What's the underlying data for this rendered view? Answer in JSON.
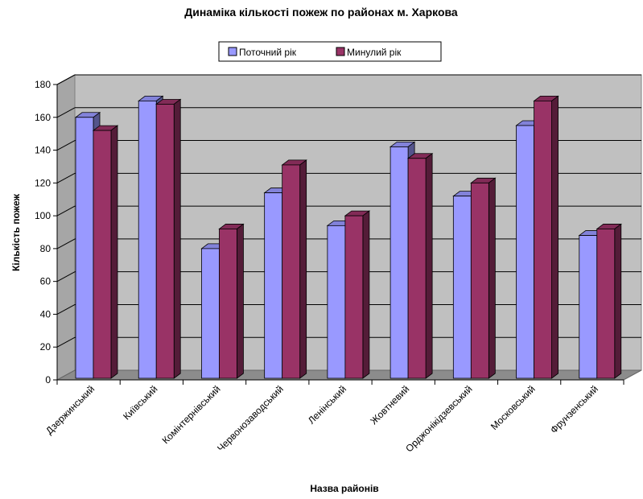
{
  "chart_data": {
    "type": "bar",
    "title": "Динаміка кількості пожеж по районах м. Харкова",
    "xlabel": "Назва районів",
    "ylabel": "Кількість пожеж",
    "ylim": [
      0,
      180
    ],
    "yticks": [
      0,
      20,
      40,
      60,
      80,
      100,
      120,
      140,
      160,
      180
    ],
    "categories": [
      "Дзержинський",
      "Київський",
      "Комінтернівський",
      "Червонозаводський",
      "Ленінський",
      "Жовтневий",
      "Орджонікідзевський",
      "Московський",
      "Фрунзенський"
    ],
    "series": [
      {
        "name": "Поточний рік",
        "color": "#9999ff",
        "values": [
          160,
          170,
          80,
          114,
          94,
          142,
          112,
          155,
          88
        ]
      },
      {
        "name": "Минулий рік",
        "color": "#993366",
        "values": [
          152,
          168,
          92,
          131,
          100,
          135,
          120,
          170,
          92
        ]
      }
    ],
    "grid": true,
    "legend_position": "top-center",
    "style": "3d-clustered-column"
  }
}
